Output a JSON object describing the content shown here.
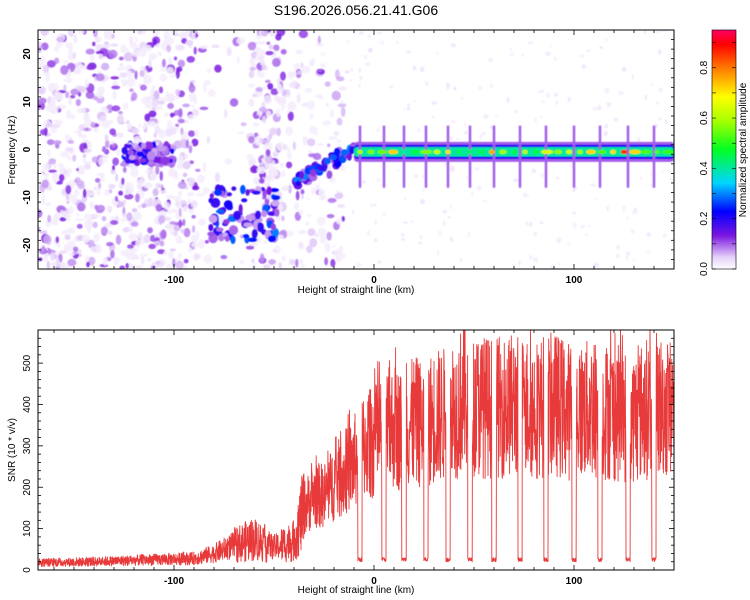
{
  "title": "S196.2026.056.21.41.G06",
  "chart_data": [
    {
      "type": "heatmap",
      "xlabel": "Height of straight line (km)",
      "ylabel": "Frequency (Hz)",
      "xlim": [
        -168,
        150
      ],
      "ylim": [
        -25,
        25
      ],
      "xticks": [
        -100,
        0,
        100
      ],
      "yticks": [
        -20,
        -10,
        0,
        10,
        20
      ],
      "colorbar": {
        "label": "Normalized spectral amplitude",
        "range": [
          0,
          0.95
        ],
        "ticks": [
          0.0,
          0.2,
          0.4,
          0.6,
          0.8
        ],
        "tick_labels": [
          "0.0",
          "0.2",
          "0.4",
          "0.6",
          "0.8"
        ]
      },
      "features": [
        {
          "name": "main-tone",
          "x_range": [
            -10,
            150
          ],
          "frequency": -0.5,
          "peak_amplitude": 0.9
        },
        {
          "name": "tone-rise",
          "x_range": [
            -40,
            -10
          ],
          "frequency_range": [
            -7,
            0
          ],
          "peak_amplitude": 0.3
        },
        {
          "name": "cluster-left",
          "x_range": [
            -125,
            -100
          ],
          "frequency_range": [
            -3,
            1
          ],
          "peak_amplitude": 0.25
        },
        {
          "name": "cluster-mid",
          "x_range": [
            -82,
            -48
          ],
          "frequency_range": [
            -19,
            -8
          ],
          "peak_amplitude": 0.3
        },
        {
          "name": "noise-floor",
          "x_range": [
            -168,
            -40
          ],
          "frequency_range": [
            -25,
            25
          ],
          "peak_amplitude": 0.1
        }
      ]
    },
    {
      "type": "line",
      "xlabel": "Height of straight line (km)",
      "ylabel": "SNR (10 * v/v)",
      "xlim": [
        -168,
        150
      ],
      "ylim": [
        0,
        580
      ],
      "xticks": [
        -100,
        0,
        100
      ],
      "yticks": [
        0,
        100,
        200,
        300,
        400,
        500
      ],
      "series": [
        {
          "name": "SNR",
          "color": "#e83a3a",
          "x": [
            -168,
            -140,
            -110,
            -90,
            -80,
            -70,
            -60,
            -50,
            -40,
            -35,
            -30,
            -25,
            -20,
            -15,
            -10,
            -5,
            0,
            5,
            10,
            15,
            20,
            25,
            30,
            40,
            45,
            50,
            60,
            70,
            80,
            90,
            100,
            110,
            120,
            130,
            140,
            150
          ],
          "y": [
            18,
            20,
            25,
            28,
            40,
            60,
            75,
            55,
            70,
            150,
            180,
            180,
            210,
            230,
            260,
            300,
            310,
            330,
            350,
            330,
            360,
            350,
            370,
            380,
            420,
            400,
            390,
            400,
            390,
            400,
            380,
            390,
            380,
            370,
            400,
            390
          ],
          "dips_x": [
            -7,
            5,
            15,
            26,
            37,
            48,
            60,
            73,
            86,
            100,
            113,
            127,
            140
          ],
          "dip_value": 20
        }
      ]
    }
  ]
}
